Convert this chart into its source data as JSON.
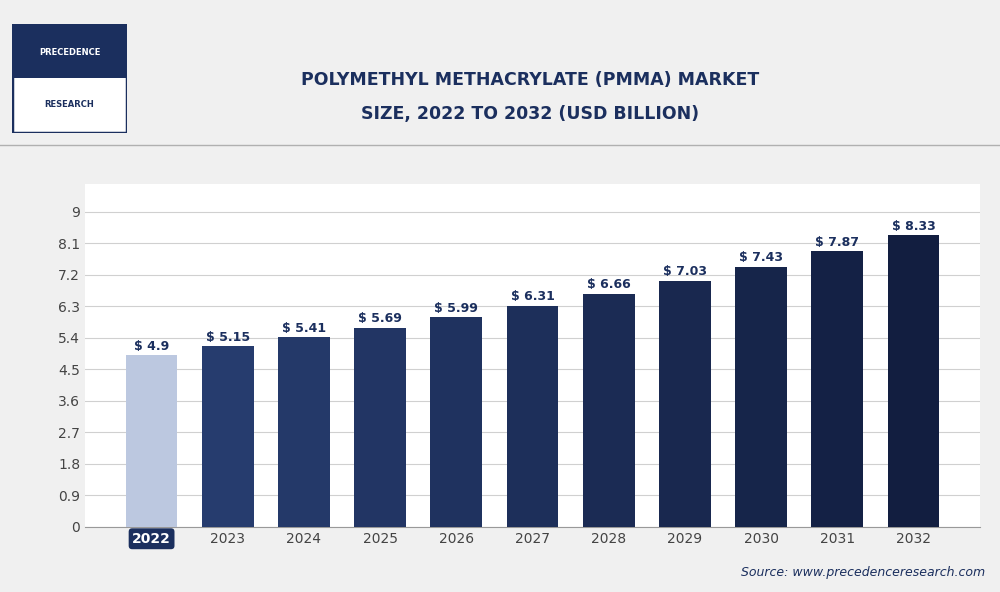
{
  "title_line1": "POLYMETHYL METHACRYLATE (PMMA) MARKET",
  "title_line2": "SIZE, 2022 TO 2032 (USD BILLION)",
  "categories": [
    "2022",
    "2023",
    "2024",
    "2025",
    "2026",
    "2027",
    "2028",
    "2029",
    "2030",
    "2031",
    "2032"
  ],
  "values": [
    4.9,
    5.15,
    5.41,
    5.69,
    5.99,
    6.31,
    6.66,
    7.03,
    7.43,
    7.87,
    8.33
  ],
  "labels": [
    "$ 4.9",
    "$ 5.15",
    "$ 5.41",
    "$ 5.69",
    "$ 5.99",
    "$ 6.31",
    "$ 6.66",
    "$ 7.03",
    "$ 7.43",
    "$ 7.87",
    "$ 8.33"
  ],
  "first_bar_color": "#bcc8e0",
  "bar_colors_dark": [
    "#243a6b",
    "#243a6b",
    "#243464",
    "#22325e",
    "#203060",
    "#1e2e5a",
    "#1c2b55",
    "#192850",
    "#17254b",
    "#152246"
  ],
  "highlight_2022_bg": "#4a6ab0",
  "yticks": [
    0,
    0.9,
    1.8,
    2.7,
    3.6,
    4.5,
    5.4,
    6.3,
    7.2,
    8.1,
    9
  ],
  "ylim": [
    0,
    9.8
  ],
  "background_color": "#f0f0f0",
  "plot_bg_color": "#ffffff",
  "header_bg_color": "#f0f0f0",
  "source_text": "Source: www.precedenceresearch.com",
  "logo_text_top": "PRECEDENCE",
  "logo_text_bottom": "RESEARCH",
  "title_color": "#1b2f5e",
  "grid_color": "#d0d0d0",
  "axis_label_color": "#444444",
  "label_fontsize": 9,
  "title_fontsize": 12.5,
  "tick_fontsize": 10
}
